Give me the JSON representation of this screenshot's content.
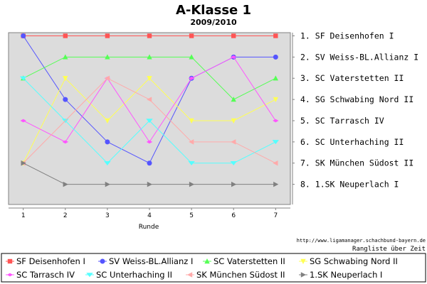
{
  "chart_data": {
    "type": "line",
    "title": "A-Klasse 1",
    "subtitle": "2009/2010",
    "xlabel": "Runde",
    "ylabel": "",
    "x": [
      1,
      2,
      3,
      4,
      5,
      6,
      7
    ],
    "ylim": [
      1,
      8
    ],
    "y_inverted": true,
    "grid": false,
    "legend_position": "bottom",
    "right_axis_labels": [
      "1. SF Deisenhofen I",
      "2. SV Weiss-BL.Allianz I",
      "3. SC Vaterstetten II",
      "4. SG Schwabing Nord II",
      "5. SC Tarrasch IV",
      "6. SC Unterhaching II",
      "7. SK München Südost II",
      "8. 1.SK Neuperlach I"
    ],
    "series": [
      {
        "name": "SF Deisenhofen I",
        "values": [
          1,
          1,
          1,
          1,
          1,
          1,
          1
        ],
        "color": "#ff5555",
        "marker": "square"
      },
      {
        "name": "SV Weiss-BL.Allianz I",
        "values": [
          1,
          4,
          6,
          7,
          3,
          2,
          2
        ],
        "color": "#5555ff",
        "marker": "circle"
      },
      {
        "name": "SC Vaterstetten II",
        "values": [
          3,
          2,
          2,
          2,
          2,
          4,
          3
        ],
        "color": "#55ff55",
        "marker": "triangle-up"
      },
      {
        "name": "SG Schwabing Nord II",
        "values": [
          7,
          3,
          5,
          3,
          5,
          5,
          4
        ],
        "color": "#ffff55",
        "marker": "triangle-down"
      },
      {
        "name": "SC Tarrasch IV",
        "values": [
          5,
          6,
          3,
          6,
          3,
          2,
          5
        ],
        "color": "#ff55ff",
        "marker": "diamond-h"
      },
      {
        "name": "SC Unterhaching II",
        "values": [
          3,
          5,
          7,
          5,
          7,
          7,
          6
        ],
        "color": "#55ffff",
        "marker": "triangle-down-wide"
      },
      {
        "name": "SK München Südost II",
        "values": [
          7,
          null,
          3,
          4,
          6,
          6,
          7
        ],
        "color": "#ffaaaa",
        "marker": "triangle-left"
      },
      {
        "name": "1.SK Neuperlach I",
        "values": [
          7,
          8,
          8,
          8,
          8,
          8,
          8
        ],
        "color": "#808080",
        "marker": "triangle-right"
      }
    ]
  },
  "footer": {
    "url": "http://www.ligamanager.schachbund-bayern.de",
    "caption": "Rangliste über Zeit"
  }
}
